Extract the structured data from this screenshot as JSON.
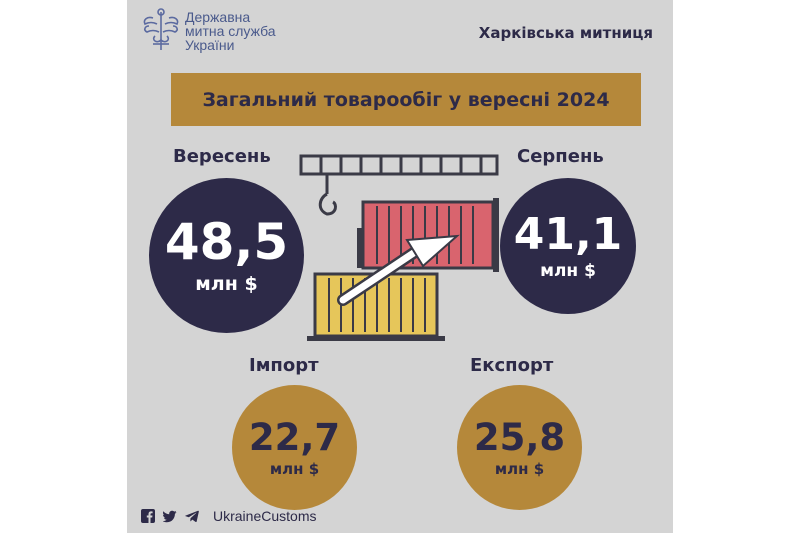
{
  "header": {
    "org_lines": [
      "Державна",
      "митна служба",
      "України"
    ],
    "region": "Харківська митниця"
  },
  "banner": {
    "title": "Загальний товарообіг у вересні 2024"
  },
  "current": {
    "month": "Вересень",
    "value": "48,5",
    "unit": "млн $"
  },
  "previous": {
    "month": "Серпень",
    "value": "41,1",
    "unit": "млн $"
  },
  "import": {
    "label": "Імпорт",
    "value": "22,7",
    "unit": "млн $"
  },
  "export": {
    "label": "Експорт",
    "value": "25,8",
    "unit": "млн $"
  },
  "footer": {
    "icons": [
      "facebook-icon",
      "twitter-icon",
      "telegram-icon"
    ],
    "handle": "UkraineCustoms"
  },
  "colors": {
    "background": "#d4d4d4",
    "navy": "#2d2a48",
    "gold": "#b5883a",
    "red_container": "#d9646e",
    "yellow_container": "#e6c65a",
    "logo_blue": "#4a5a8c"
  }
}
